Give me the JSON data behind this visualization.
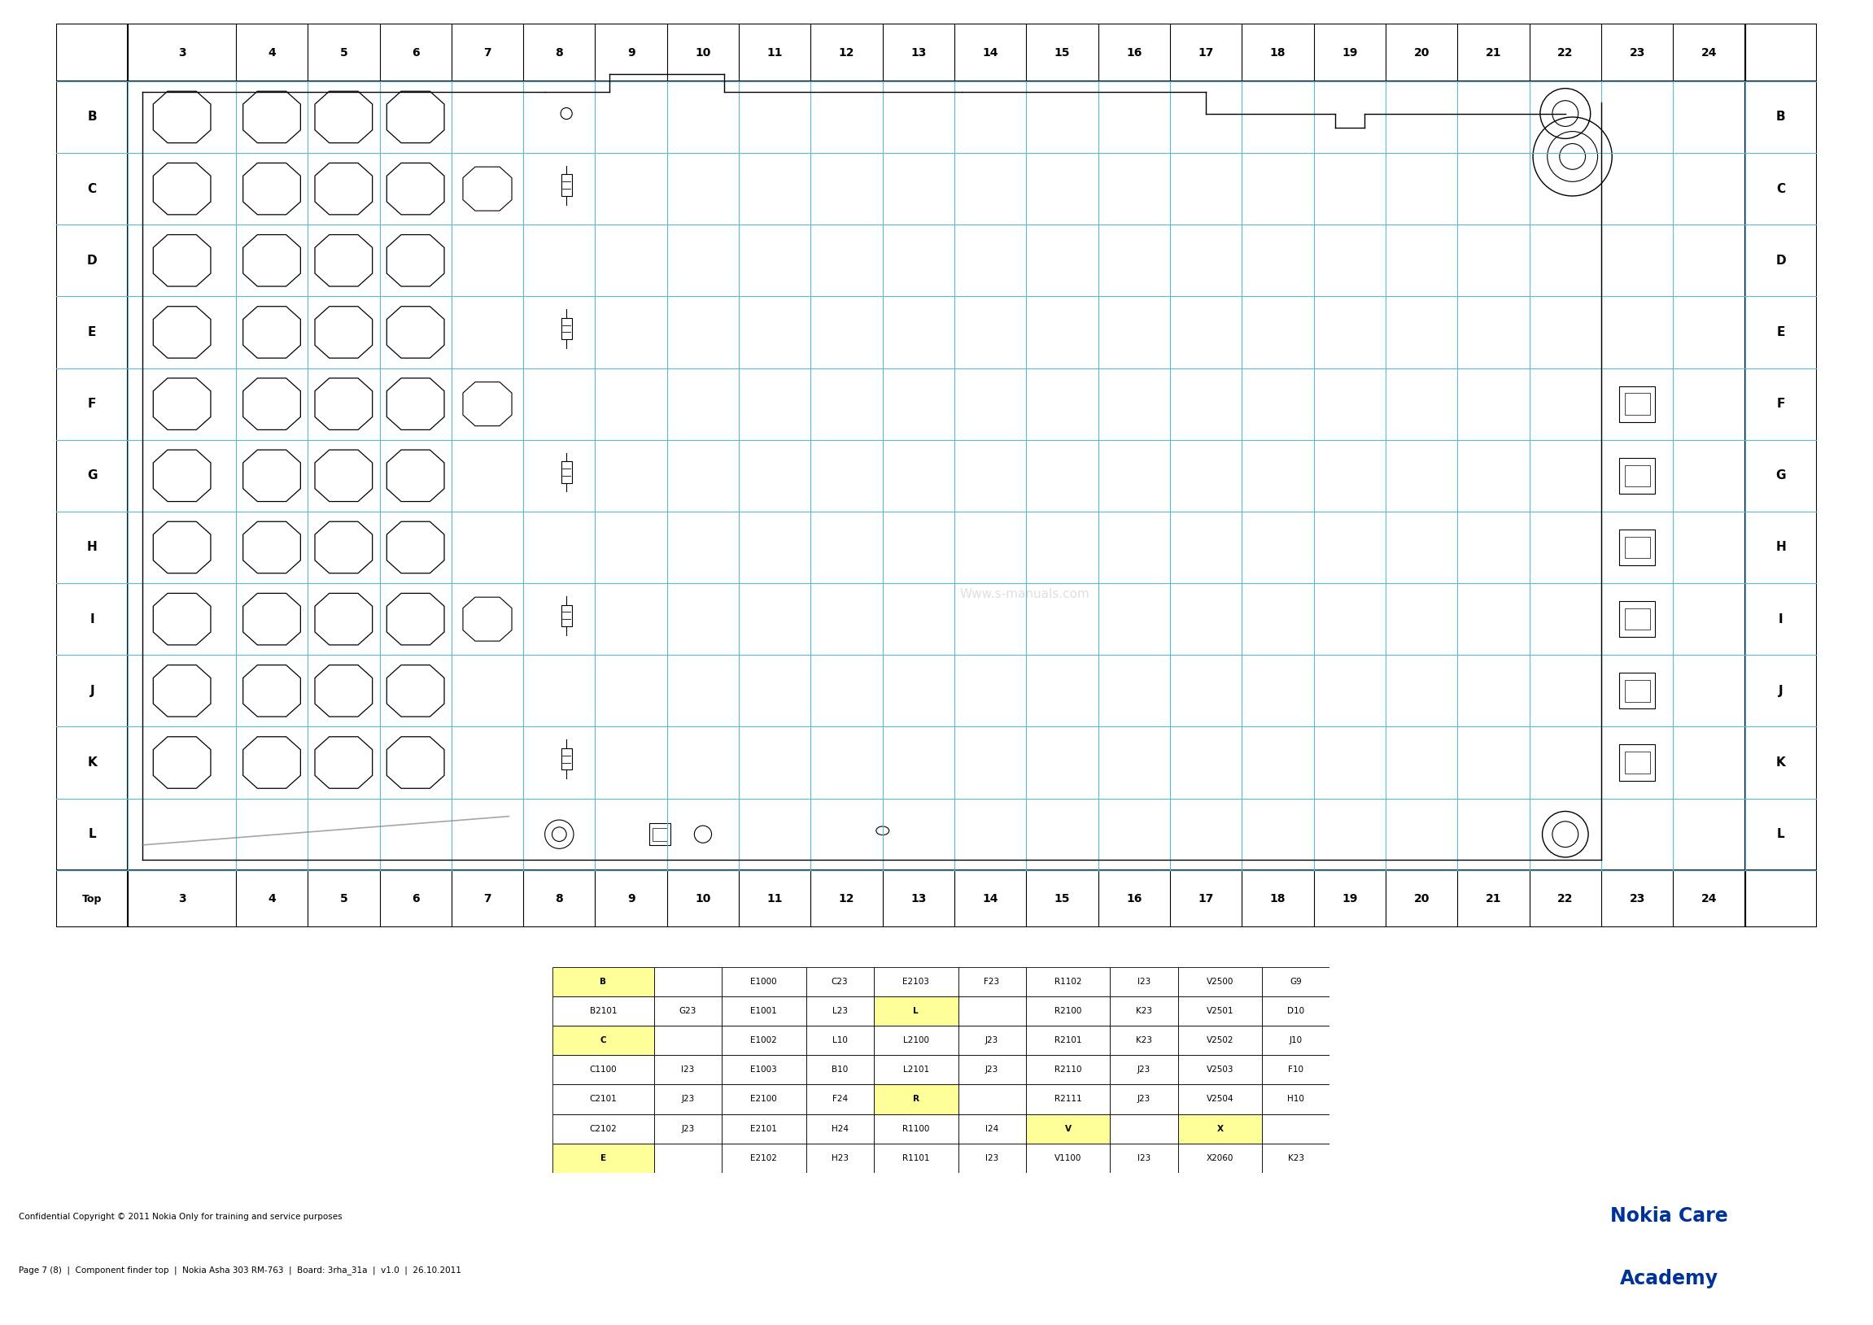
{
  "col_labels": [
    "3",
    "4",
    "5",
    "6",
    "7",
    "8",
    "9",
    "10",
    "11",
    "12",
    "13",
    "14",
    "15",
    "16",
    "17",
    "18",
    "19",
    "20",
    "21",
    "22",
    "23",
    "24"
  ],
  "row_labels": [
    "B",
    "C",
    "D",
    "E",
    "F",
    "G",
    "H",
    "I",
    "J",
    "K",
    "L"
  ],
  "grid_color": "#5BB8D4",
  "bg_color": "#FFFFFF",
  "border_color": "#000000",
  "copyright": "Confidential Copyright © 2011 Nokia Only for training and service purposes",
  "page_info": "Page 7 (8)  |  Component finder top  |  Nokia Asha 303 RM-763  |  Board: 3rha_31a  |  v1.0  |  26.10.2011",
  "watermark": "Www.s-manuals.com",
  "table_data": [
    [
      "B",
      "",
      "E1000",
      "C23",
      "E2103",
      "F23",
      "R1102",
      "I23",
      "V2500",
      "G9"
    ],
    [
      "B2101",
      "G23",
      "E1001",
      "L23",
      "L",
      "",
      "R2100",
      "K23",
      "V2501",
      "D10"
    ],
    [
      "C",
      "",
      "E1002",
      "L10",
      "L2100",
      "J23",
      "R2101",
      "K23",
      "V2502",
      "J10"
    ],
    [
      "C1100",
      "I23",
      "E1003",
      "B10",
      "L2101",
      "J23",
      "R2110",
      "J23",
      "V2503",
      "F10"
    ],
    [
      "C2101",
      "J23",
      "E2100",
      "F24",
      "R",
      "",
      "R2111",
      "J23",
      "V2504",
      "H10"
    ],
    [
      "C2102",
      "J23",
      "E2101",
      "H24",
      "R1100",
      "I24",
      "V",
      "",
      "X",
      ""
    ],
    [
      "E",
      "",
      "E2102",
      "H23",
      "R1101",
      "I23",
      "V1100",
      "I23",
      "X2060",
      "K23"
    ]
  ],
  "highlight_cols": [
    0,
    4,
    6,
    8
  ],
  "highlight_yellow": [
    "B",
    "C",
    "E",
    "L",
    "R",
    "V",
    "X"
  ]
}
